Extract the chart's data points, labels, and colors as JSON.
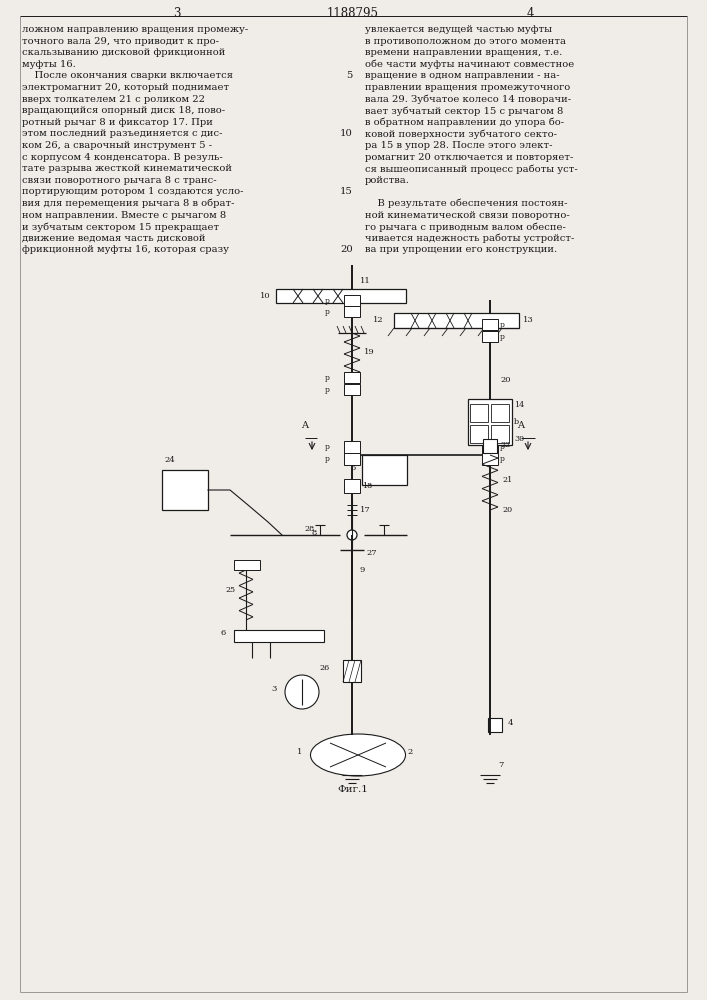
{
  "page_width": 7.07,
  "page_height": 10.0,
  "bg_color": "#f0ede8",
  "line_color": "#1a1a1a",
  "text_color": "#1a1a1a",
  "header_text": "1188795",
  "page_left": "3",
  "page_right": "4",
  "left_texts": [
    "ложном направлению вращения промежу-",
    "точного вала 29, что приводит к про-",
    "скальзыванию дисковой фрикционной",
    "муфты 16.",
    "    После окончания сварки включается",
    "электромагнит 20, который поднимает",
    "вверх толкателем 21 с роликом 22",
    "вращающийся опорный диск 18, пово-",
    "ротный рычаг 8 и фиксатор 17. При",
    "этом последний разъединяется с дис-",
    "ком 26, а сварочный инструмент 5 -",
    "с корпусом 4 конденсатора. В резуль-",
    "тате разрыва жесткой кинематической",
    "связи поворотного рычага 8 с транс-",
    "портирующим ротором 1 создаются усло-",
    "вия для перемещения рычага 8 в обрат-",
    "ном направлении. Вместе с рычагом 8",
    "и зубчатым сектором 15 прекращает",
    "движение ведомая часть дисковой",
    "фрикционной муфты 16, которая сразу"
  ],
  "right_texts": [
    "увлекается ведущей частью муфты",
    "в противоположном до этого момента",
    "времени направлении вращения, т.е.",
    "обе части муфты начинают совместное",
    "вращение в одном направлении - на-",
    "правлении вращения промежуточного",
    "вала 29. Зубчатое колесо 14 поворачи-",
    "вает зубчатый сектор 15 с рычагом 8",
    "в обратном направлении до упора бо-",
    "ковой поверхности зубчатого секто-",
    "ра 15 в упор 28. После этого элект-",
    "ромагнит 20 отключается и повторяет-",
    "ся вышеописанный процесс работы уст-",
    "ройства.",
    "",
    "    В результате обеспечения постоян-",
    "ной кинематической связи поворотно-",
    "го рычага с приводным валом обеспе-",
    "чивается надежность работы устройст-",
    "ва при упрощении его конструкции."
  ],
  "line_nums": {
    "4": "5",
    "9": "10",
    "14": "15",
    "19": "20"
  }
}
